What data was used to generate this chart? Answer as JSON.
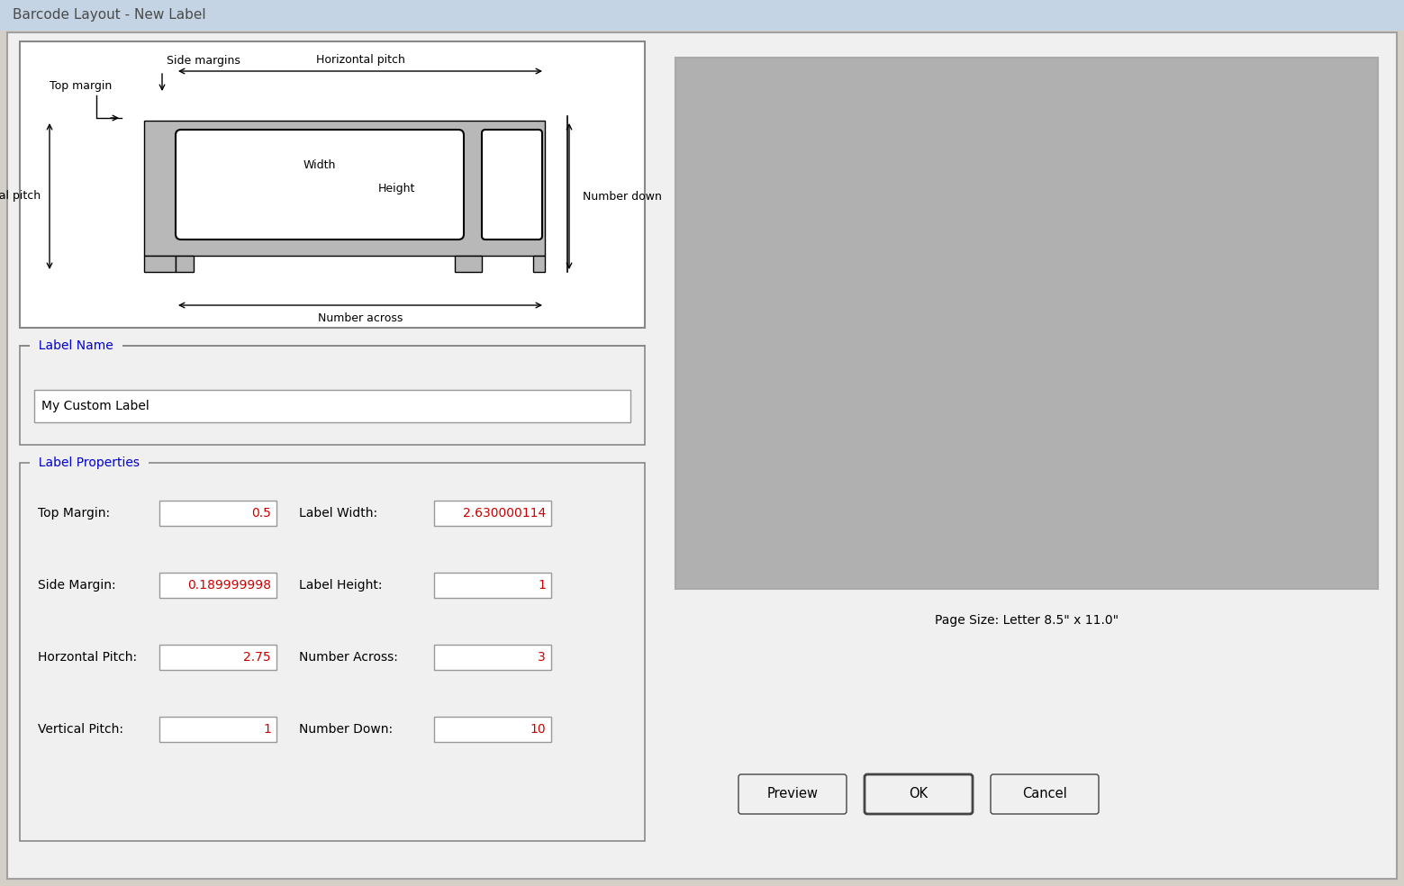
{
  "title": "Barcode Layout - New Label",
  "title_color": "#4a4a4a",
  "bg_color": "#d4d0c8",
  "window_bg": "#ece9d8",
  "dialog_bg": "#f0f0f0",
  "white": "#ffffff",
  "gray_panel": "#b8b8b8",
  "light_gray": "#c0c0c0",
  "medium_gray": "#a0a0a0",
  "dark_gray": "#808080",
  "border_color": "#808080",
  "blue_text": "#0000cc",
  "black": "#000000",
  "preview_gray": "#b0b0b0",
  "label_name_text": "My Custom Label",
  "label_name_section": "Label Name",
  "label_props_section": "Label Properties",
  "fields_left": [
    "Top Margin:",
    "Side Margin:",
    "Horzontal Pitch:",
    "Vertical Pitch:"
  ],
  "values_left": [
    "0.5",
    "0.189999998",
    "2.75",
    "1"
  ],
  "fields_right": [
    "Label Width:",
    "Label Height:",
    "Number Across:",
    "Number Down:"
  ],
  "values_right": [
    "2.630000114",
    "1",
    "3",
    "10"
  ],
  "page_size_text": "Page Size: Letter 8.5\" x 11.0\"",
  "btn_preview": "Preview",
  "btn_ok": "OK",
  "btn_cancel": "Cancel",
  "annot_side_margins": "Side margins",
  "annot_top_margin": "Top margin",
  "annot_horiz_pitch": "Horizontal pitch",
  "annot_vert_pitch": "Vertical pitch",
  "annot_width": "Width",
  "annot_height": "Height",
  "annot_num_across": "Number across",
  "annot_num_down": "Number down"
}
